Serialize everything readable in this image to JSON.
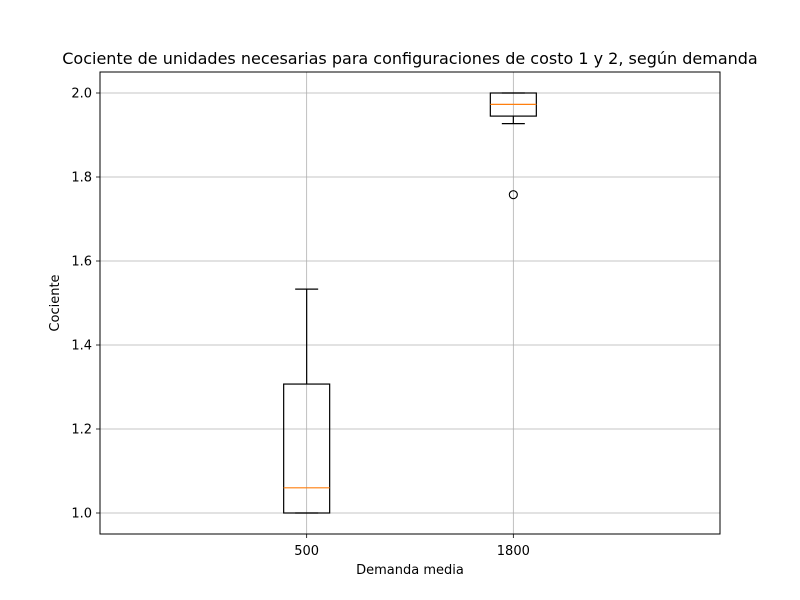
{
  "chart_data": {
    "type": "box",
    "title": "Cociente de unidades necesarias para configuraciones de costo 1 y 2, según demanda",
    "xlabel": "Demanda media",
    "ylabel": "Cociente",
    "categories": [
      "500",
      "1800"
    ],
    "boxes": [
      {
        "category": "500",
        "whislo": 1.0,
        "q1": 1.0,
        "median": 1.06,
        "q3": 1.307,
        "whishi": 1.533,
        "fliers": []
      },
      {
        "category": "1800",
        "whislo": 1.927,
        "q1": 1.945,
        "median": 1.973,
        "q3": 2.0,
        "whishi": 2.0,
        "fliers": [
          1.758
        ]
      }
    ],
    "ylim": [
      0.95,
      2.05
    ],
    "yticks": [
      1.0,
      1.2,
      1.4,
      1.6,
      1.8,
      2.0
    ],
    "ytick_labels": [
      "1.0",
      "1.2",
      "1.4",
      "1.6",
      "1.8",
      "2.0"
    ],
    "grid": true,
    "colors": {
      "box": "#000000",
      "median": "#ff7f0e",
      "grid": "#b0b0b0"
    }
  }
}
